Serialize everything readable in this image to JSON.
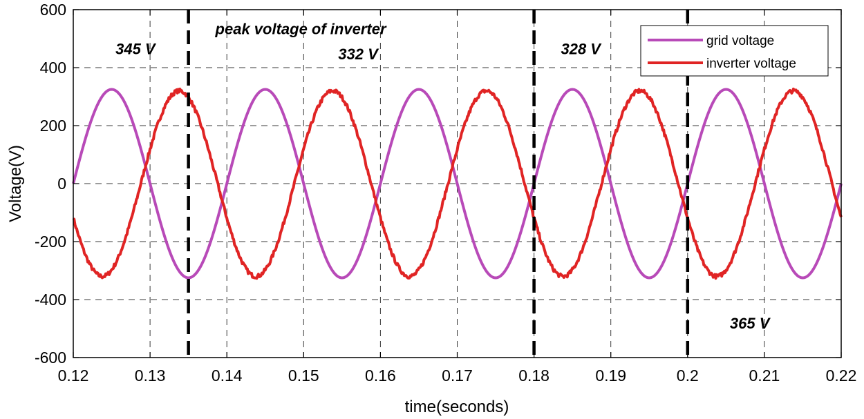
{
  "chart_data": {
    "type": "line",
    "title": "",
    "xlabel": "time(seconds)",
    "ylabel": "Voltage(V)",
    "xlim": [
      0.12,
      0.22
    ],
    "ylim": [
      -600,
      600
    ],
    "grid": true,
    "xticks": [
      0.12,
      0.13,
      0.14,
      0.15,
      0.16,
      0.17,
      0.18,
      0.19,
      0.2,
      0.21,
      0.22
    ],
    "xtick_labels": [
      "0.12",
      "0.13",
      "0.14",
      "0.15",
      "0.16",
      "0.17",
      "0.18",
      "0.19",
      "0.2",
      "0.21",
      "0.22"
    ],
    "yticks": [
      600,
      400,
      200,
      0,
      -200,
      -400,
      -600
    ],
    "ytick_labels": [
      "600",
      "400",
      "200",
      "0",
      "-200",
      "-400",
      "-600"
    ],
    "legend_position": "top-right",
    "series": [
      {
        "name": "grid voltage",
        "color": "#b84ab8",
        "waveform": "sine",
        "frequency_hz": 50,
        "amplitude_v": 325,
        "phase_rad": 0
      },
      {
        "name": "inverter voltage",
        "color": "#e02424",
        "waveform": "sine",
        "frequency_hz": 50,
        "amplitude_v": 320,
        "phase_rad": 3.52,
        "noisy": true,
        "peaks": [
          {
            "t": 0.1345,
            "v": 325
          },
          {
            "t": 0.1545,
            "v": 330
          },
          {
            "t": 0.1745,
            "v": 315
          },
          {
            "t": 0.1945,
            "v": 330
          },
          {
            "t": 0.2145,
            "v": 330
          }
        ],
        "troughs": [
          {
            "t": 0.1245,
            "v": -320
          },
          {
            "t": 0.1445,
            "v": -320
          },
          {
            "t": 0.1645,
            "v": -305
          },
          {
            "t": 0.1845,
            "v": -315
          },
          {
            "t": 0.2045,
            "v": -330
          }
        ]
      }
    ],
    "markers": [
      0.135,
      0.18,
      0.2
    ],
    "annotations": [
      {
        "text": "peak voltage of inverter",
        "x": 0.1385,
        "y": 515
      },
      {
        "text": "345 V",
        "x": 0.1255,
        "y": 447
      },
      {
        "text": "332 V",
        "x": 0.1545,
        "y": 428
      },
      {
        "text": "328 V",
        "x": 0.1835,
        "y": 447
      },
      {
        "text": "365 V",
        "x": 0.2055,
        "y": -500
      }
    ]
  }
}
